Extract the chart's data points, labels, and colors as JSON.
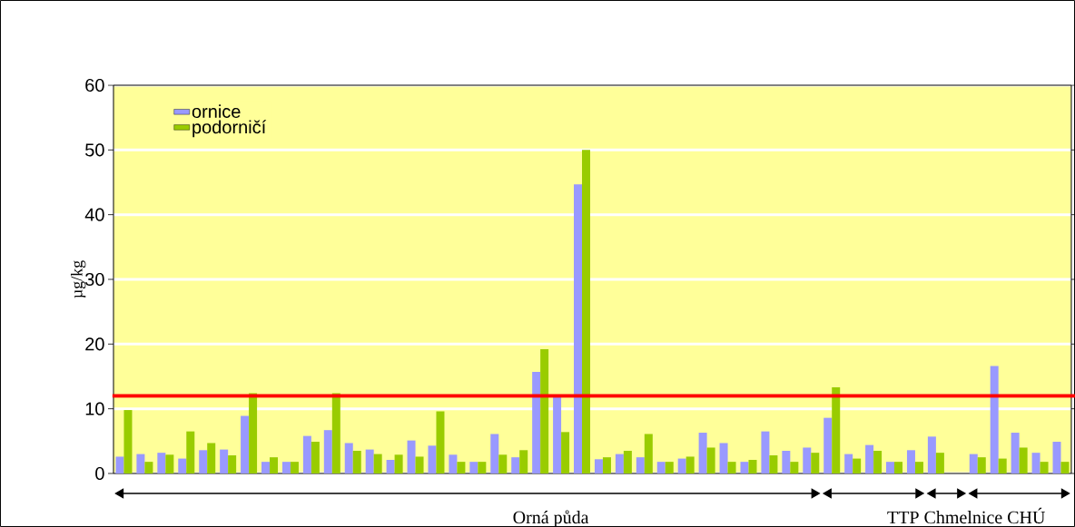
{
  "chart_data": {
    "type": "bar",
    "ylabel": "µg/kg",
    "categories": [
      null,
      null,
      null,
      null,
      null,
      null,
      null,
      null,
      null,
      null,
      null,
      null,
      null,
      null,
      null,
      null,
      null,
      null,
      null,
      null,
      null,
      null,
      null,
      null,
      null,
      null,
      null,
      null,
      null,
      null,
      null,
      null,
      null,
      null,
      null,
      null,
      null,
      null,
      null,
      null,
      null,
      null,
      null,
      null,
      null,
      null
    ],
    "series": [
      {
        "name": "ornice",
        "color": "#9999ff",
        "values": [
          2.6,
          3.0,
          3.2,
          2.3,
          3.6,
          3.7,
          8.9,
          1.8,
          1.8,
          5.8,
          6.7,
          4.7,
          3.7,
          2.1,
          5.1,
          4.3,
          2.9,
          1.8,
          6.1,
          2.5,
          15.7,
          11.8,
          44.7,
          2.2,
          3.0,
          2.5,
          1.8,
          2.3,
          6.3,
          4.7,
          1.8,
          6.5,
          3.5,
          4.0,
          8.6,
          3.0,
          4.4,
          1.8,
          3.6,
          5.7,
          null,
          3.0,
          16.6,
          6.3,
          3.2,
          4.9
        ]
      },
      {
        "name": "podorničí",
        "color": "#99cc00",
        "values": [
          9.8,
          1.8,
          2.9,
          6.5,
          4.7,
          2.8,
          12.4,
          2.5,
          1.8,
          4.9,
          12.4,
          3.5,
          3.0,
          2.9,
          2.6,
          9.6,
          1.8,
          1.8,
          2.9,
          3.6,
          19.2,
          6.4,
          50.0,
          2.5,
          3.5,
          6.1,
          1.8,
          2.6,
          4.0,
          1.8,
          2.1,
          2.8,
          1.8,
          3.2,
          13.3,
          2.3,
          3.5,
          1.8,
          1.8,
          3.2,
          null,
          2.5,
          2.3,
          4.0,
          1.8,
          1.8
        ]
      }
    ],
    "ylim": [
      0,
      60
    ],
    "yticks": [
      0,
      10,
      20,
      30,
      40,
      50,
      60
    ],
    "grid": true,
    "legend": "top left",
    "ref_lines": [
      {
        "axis": "y",
        "value": 12,
        "color": "#ff0000"
      }
    ],
    "annotations": [
      "Orná půda",
      "TTP",
      "Chmelnice",
      "CHÚ"
    ]
  }
}
